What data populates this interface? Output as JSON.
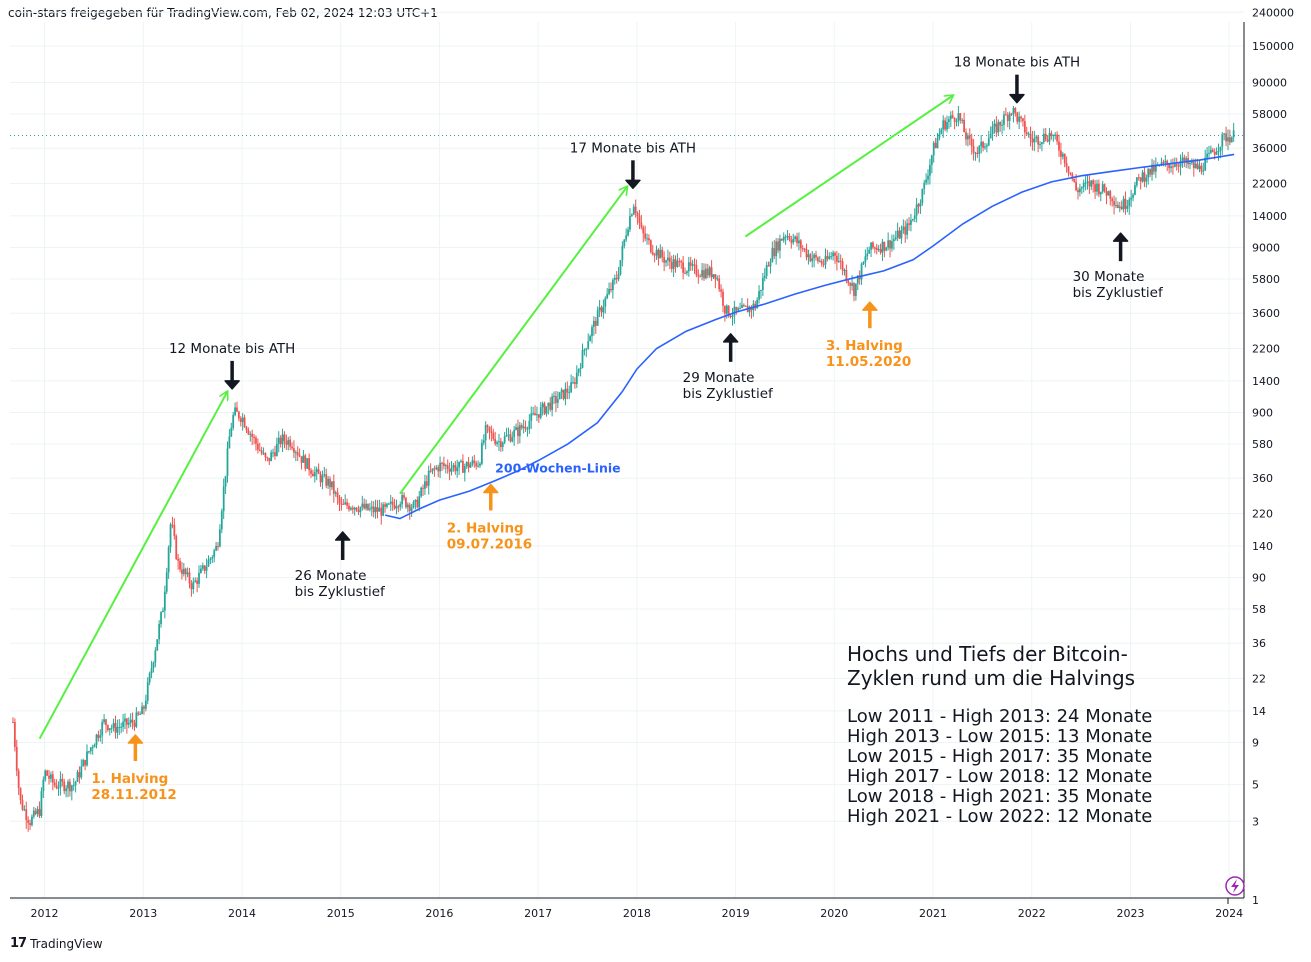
{
  "header": {
    "text": "coin-stars freigegeben für TradingView.com, Feb 02, 2024 12:03 UTC+1"
  },
  "footer": {
    "logo": "17",
    "brand": "TradingView"
  },
  "colors": {
    "candle_up": "#26a69a",
    "candle_down": "#ef5350",
    "ma": "#2962ff",
    "trend": "#56f040",
    "halving": "#f7931a",
    "grid": "#eef4f4",
    "last_price": "#26a69a"
  },
  "icons": {
    "flash": "flash-icon"
  },
  "chart_data": {
    "type": "candlestick",
    "scale": "log",
    "x_ticks": [
      "2012",
      "2013",
      "2014",
      "2015",
      "2016",
      "2017",
      "2018",
      "2019",
      "2020",
      "2021",
      "2022",
      "2023",
      "2024"
    ],
    "y_ticks": [
      "240000",
      "150000",
      "90000",
      "58000",
      "36000",
      "22000",
      "14000",
      "9000",
      "5800",
      "3600",
      "2200",
      "1400",
      "900",
      "580",
      "360",
      "220",
      "140",
      "90",
      "58",
      "36",
      "22",
      "14",
      "9",
      "5",
      "3",
      "1"
    ],
    "ylim": [
      1,
      240000
    ],
    "xlim": [
      2011.65,
      2024.15
    ],
    "price_anchors": [
      [
        2011.68,
        12
      ],
      [
        2011.75,
        4
      ],
      [
        2011.85,
        3
      ],
      [
        2011.95,
        3.5
      ],
      [
        2012.0,
        6
      ],
      [
        2012.1,
        5
      ],
      [
        2012.3,
        5
      ],
      [
        2012.45,
        8
      ],
      [
        2012.6,
        12
      ],
      [
        2012.7,
        11
      ],
      [
        2012.9,
        12
      ],
      [
        2013.0,
        14
      ],
      [
        2013.2,
        60
      ],
      [
        2013.28,
        200
      ],
      [
        2013.35,
        110
      ],
      [
        2013.5,
        80
      ],
      [
        2013.65,
        110
      ],
      [
        2013.75,
        140
      ],
      [
        2013.88,
        700
      ],
      [
        2013.92,
        900
      ],
      [
        2014.0,
        850
      ],
      [
        2014.1,
        650
      ],
      [
        2014.25,
        450
      ],
      [
        2014.4,
        620
      ],
      [
        2014.5,
        600
      ],
      [
        2014.6,
        480
      ],
      [
        2014.75,
        380
      ],
      [
        2014.9,
        330
      ],
      [
        2015.0,
        240
      ],
      [
        2015.1,
        250
      ],
      [
        2015.3,
        230
      ],
      [
        2015.45,
        230
      ],
      [
        2015.6,
        270
      ],
      [
        2015.75,
        240
      ],
      [
        2015.9,
        380
      ],
      [
        2016.0,
        430
      ],
      [
        2016.2,
        420
      ],
      [
        2016.4,
        450
      ],
      [
        2016.47,
        700
      ],
      [
        2016.6,
        600
      ],
      [
        2016.8,
        700
      ],
      [
        2017.0,
        900
      ],
      [
        2017.2,
        1100
      ],
      [
        2017.35,
        1300
      ],
      [
        2017.5,
        2500
      ],
      [
        2017.65,
        4000
      ],
      [
        2017.8,
        6000
      ],
      [
        2017.9,
        12000
      ],
      [
        2017.97,
        17000
      ],
      [
        2018.05,
        11000
      ],
      [
        2018.15,
        9000
      ],
      [
        2018.3,
        7500
      ],
      [
        2018.45,
        7000
      ],
      [
        2018.6,
        6500
      ],
      [
        2018.8,
        6300
      ],
      [
        2018.9,
        3700
      ],
      [
        2019.0,
        3600
      ],
      [
        2019.2,
        4000
      ],
      [
        2019.35,
        8000
      ],
      [
        2019.5,
        11000
      ],
      [
        2019.6,
        10000
      ],
      [
        2019.75,
        8000
      ],
      [
        2019.9,
        7200
      ],
      [
        2020.0,
        8500
      ],
      [
        2020.2,
        5000
      ],
      [
        2020.35,
        8800
      ],
      [
        2020.55,
        9500
      ],
      [
        2020.75,
        12000
      ],
      [
        2020.9,
        20000
      ],
      [
        2021.0,
        35000
      ],
      [
        2021.1,
        50000
      ],
      [
        2021.25,
        58000
      ],
      [
        2021.35,
        40000
      ],
      [
        2021.45,
        34000
      ],
      [
        2021.6,
        45000
      ],
      [
        2021.8,
        62000
      ],
      [
        2021.9,
        50000
      ],
      [
        2022.0,
        40000
      ],
      [
        2022.2,
        44000
      ],
      [
        2022.35,
        30000
      ],
      [
        2022.45,
        20000
      ],
      [
        2022.6,
        22000
      ],
      [
        2022.8,
        19000
      ],
      [
        2022.88,
        16000
      ],
      [
        2022.95,
        16800
      ],
      [
        2023.1,
        24000
      ],
      [
        2023.3,
        28000
      ],
      [
        2023.5,
        30000
      ],
      [
        2023.7,
        27000
      ],
      [
        2023.85,
        35000
      ],
      [
        2023.95,
        42000
      ],
      [
        2024.05,
        43000
      ]
    ],
    "ma_anchors": [
      [
        2015.45,
        215
      ],
      [
        2015.6,
        205
      ],
      [
        2015.8,
        235
      ],
      [
        2016.0,
        265
      ],
      [
        2016.3,
        300
      ],
      [
        2016.55,
        345
      ],
      [
        2016.8,
        400
      ],
      [
        2017.0,
        460
      ],
      [
        2017.3,
        580
      ],
      [
        2017.6,
        780
      ],
      [
        2017.85,
        1200
      ],
      [
        2018.0,
        1650
      ],
      [
        2018.2,
        2200
      ],
      [
        2018.5,
        2800
      ],
      [
        2018.8,
        3300
      ],
      [
        2019.0,
        3650
      ],
      [
        2019.3,
        4100
      ],
      [
        2019.6,
        4700
      ],
      [
        2019.9,
        5300
      ],
      [
        2020.2,
        5900
      ],
      [
        2020.5,
        6500
      ],
      [
        2020.8,
        7600
      ],
      [
        2021.0,
        9200
      ],
      [
        2021.3,
        12500
      ],
      [
        2021.6,
        16000
      ],
      [
        2021.9,
        19500
      ],
      [
        2022.2,
        22500
      ],
      [
        2022.5,
        24500
      ],
      [
        2022.8,
        26000
      ],
      [
        2023.1,
        27500
      ],
      [
        2023.4,
        29000
      ],
      [
        2023.7,
        30500
      ],
      [
        2024.05,
        33000
      ]
    ],
    "trend_lines": [
      [
        [
          2011.95,
          9.5
        ],
        [
          2013.85,
          1200
        ]
      ],
      [
        [
          2015.6,
          290
        ],
        [
          2017.9,
          21000
        ]
      ],
      [
        [
          2019.1,
          10500
        ],
        [
          2021.2,
          75000
        ]
      ]
    ],
    "last_price": 43000,
    "annotations": [
      {
        "text": "12 Monate bis ATH",
        "kind": "down-arrow",
        "x": 2013.9,
        "y": 1400
      },
      {
        "text": "17 Monate bis ATH",
        "kind": "down-arrow",
        "x": 2017.96,
        "y": 23000
      },
      {
        "text": "18 Monate bis ATH",
        "kind": "down-arrow",
        "x": 2021.85,
        "y": 76000
      },
      {
        "text": "26 Monate|bis Zyklustief",
        "kind": "up-arrow",
        "x": 2015.02,
        "y": 170
      },
      {
        "text": "29 Monate|bis Zyklustief",
        "kind": "up-arrow",
        "x": 2018.95,
        "y": 2700
      },
      {
        "text": "30 Monate|bis Zyklustief",
        "kind": "up-arrow",
        "x": 2022.9,
        "y": 11000
      },
      {
        "text": "1. Halving|28.11.2012",
        "kind": "halving",
        "x": 2012.92,
        "y": 10
      },
      {
        "text": "2. Halving|09.07.2016",
        "kind": "halving",
        "x": 2016.52,
        "y": 330
      },
      {
        "text": "3. Halving|11.05.2020",
        "kind": "halving",
        "x": 2020.36,
        "y": 4200
      },
      {
        "text": "200-Wochen-Linie",
        "kind": "ma-label",
        "x": 2017.2,
        "y": 390
      }
    ],
    "info_box": {
      "title": [
        "Hochs und Tiefs der Bitcoin-",
        "Zyklen rund um die Halvings"
      ],
      "lines": [
        "Low 2011 - High 2013: 24 Monate",
        "High 2013 - Low 2015: 13 Monate",
        "Low 2015 - High 2017: 35 Monate",
        "High 2017 - Low 2018: 12 Monate",
        "Low 2018 - High 2021: 35 Monate",
        "High 2021 - Low 2022: 12 Monate"
      ]
    }
  }
}
